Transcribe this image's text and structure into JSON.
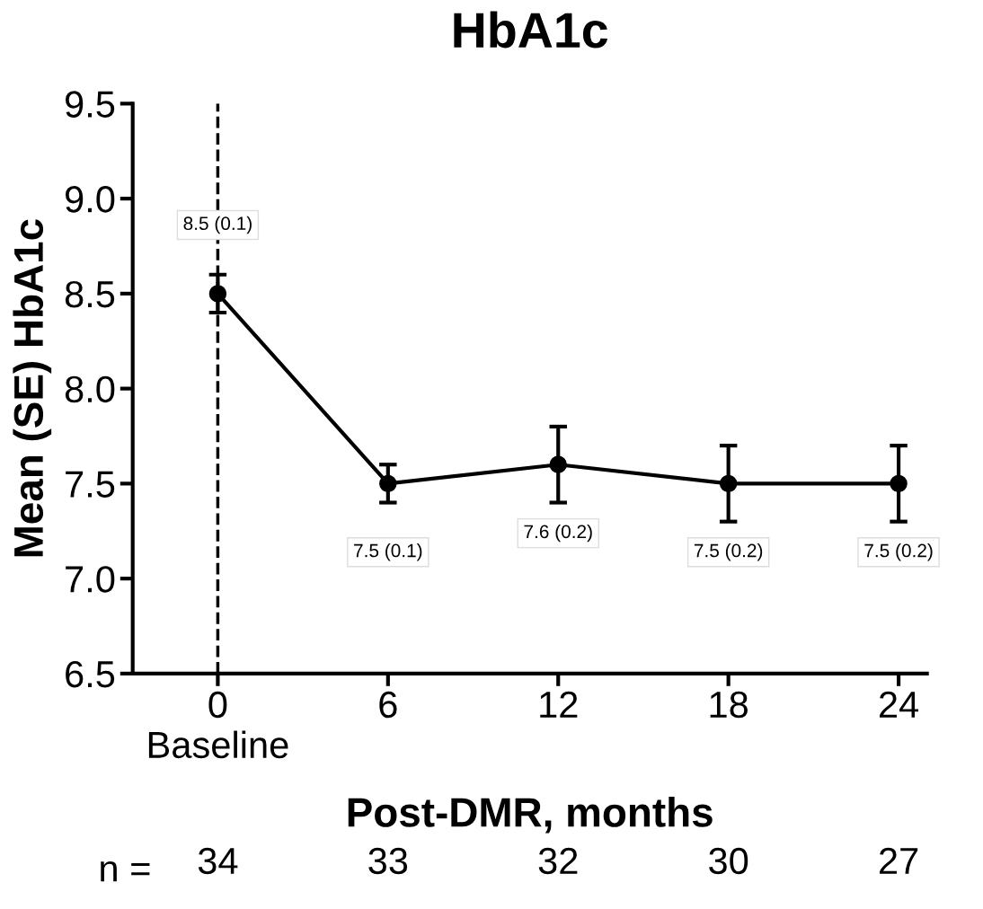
{
  "chart_data": {
    "type": "line",
    "title": "HbA1c",
    "xlabel": "Post-DMR, months",
    "ylabel": "Mean (SE) HbA1c",
    "x": [
      0,
      6,
      12,
      18,
      24
    ],
    "series": [
      {
        "color": "#000000",
        "values": [
          8.5,
          7.5,
          7.6,
          7.5,
          7.5
        ],
        "errors": [
          0.1,
          0.1,
          0.2,
          0.2,
          0.2
        ],
        "value_labels": [
          "8.5 (0.1)",
          "7.5 (0.1)",
          "7.6 (0.2)",
          "7.5 (0.2)",
          "7.5 (0.2)"
        ]
      }
    ],
    "xlim": [
      -3,
      25
    ],
    "xticks": [
      {
        "value": 0,
        "label": "0\nBaseline"
      },
      6,
      12,
      18,
      24
    ],
    "ylim": [
      6.5,
      9.5
    ],
    "yticks": [
      6.5,
      {
        "value": 7,
        "label": "7.0"
      },
      7.5,
      {
        "value": 8,
        "label": "8.0"
      },
      8.5,
      {
        "value": 9,
        "label": "9.0"
      },
      9.5
    ],
    "ref_lines": [
      {
        "axis": "x",
        "value": 0,
        "line_style": "dashed",
        "color": "#000000"
      }
    ],
    "marker": "circle",
    "line_style": "solid",
    "grid": false,
    "legend": false,
    "annotations": [
      "n =",
      "34",
      "33",
      "32",
      "30",
      "27"
    ]
  }
}
